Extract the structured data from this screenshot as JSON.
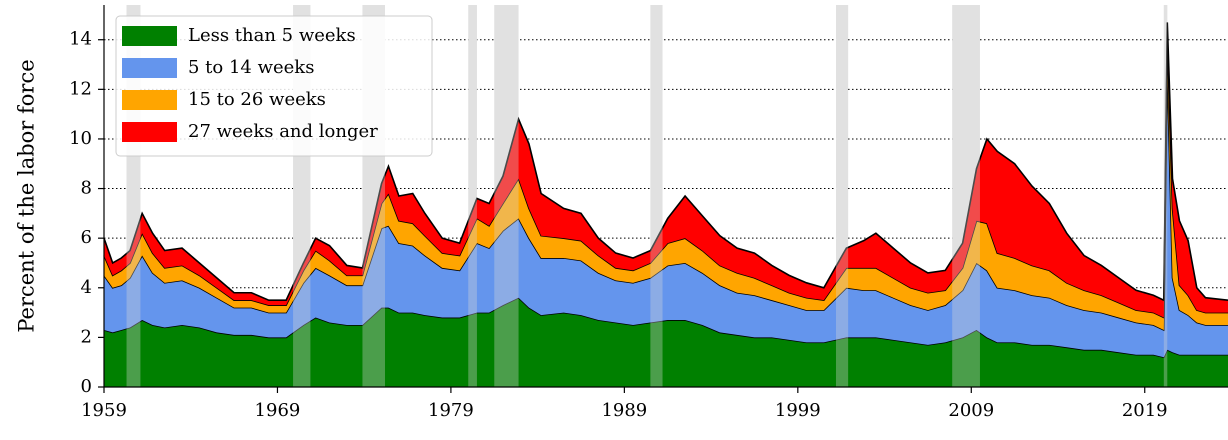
{
  "chart_data": {
    "type": "area",
    "stacked": true,
    "ylabel": "Percent of the labor force",
    "x": [
      1959,
      1959.5,
      1960,
      1960.5,
      1961.2,
      1961.8,
      1962.5,
      1963.5,
      1964.5,
      1965.5,
      1966.5,
      1967.5,
      1968.5,
      1969.5,
      1970.5,
      1971.2,
      1972,
      1973,
      1973.9,
      1975.0,
      1975.4,
      1976,
      1976.8,
      1977.5,
      1978.5,
      1979.5,
      1980.5,
      1981.2,
      1982.0,
      1982.9,
      1983.5,
      1984.2,
      1985.5,
      1986.5,
      1987.5,
      1988.5,
      1989.5,
      1990.5,
      1991.5,
      1992.5,
      1993.5,
      1994.5,
      1995.5,
      1996.5,
      1997.5,
      1998.5,
      1999.5,
      2000.5,
      2001.8,
      2002.8,
      2003.5,
      2004.5,
      2005.5,
      2006.5,
      2007.5,
      2008.5,
      2009.3,
      2009.9,
      2010.5,
      2011.5,
      2012.5,
      2013.5,
      2014.5,
      2015.5,
      2016.5,
      2017.5,
      2018.5,
      2019.5,
      2020.1,
      2020.3,
      2020.6,
      2021.0,
      2021.5,
      2022.0,
      2022.5,
      2023.8
    ],
    "series": [
      {
        "name": "Less than 5 weeks",
        "color": "#008000",
        "values": [
          2.3,
          2.2,
          2.3,
          2.4,
          2.7,
          2.5,
          2.4,
          2.5,
          2.4,
          2.2,
          2.1,
          2.1,
          2.0,
          2.0,
          2.5,
          2.8,
          2.6,
          2.5,
          2.5,
          3.2,
          3.2,
          3.0,
          3.0,
          2.9,
          2.8,
          2.8,
          3.0,
          3.0,
          3.3,
          3.6,
          3.2,
          2.9,
          3.0,
          2.9,
          2.7,
          2.6,
          2.5,
          2.6,
          2.7,
          2.7,
          2.5,
          2.2,
          2.1,
          2.0,
          2.0,
          1.9,
          1.8,
          1.8,
          2.0,
          2.0,
          2.0,
          1.9,
          1.8,
          1.7,
          1.8,
          2.0,
          2.3,
          2.0,
          1.8,
          1.8,
          1.7,
          1.7,
          1.6,
          1.5,
          1.5,
          1.4,
          1.3,
          1.3,
          1.2,
          1.5,
          1.4,
          1.3,
          1.3,
          1.3,
          1.3,
          1.3
        ]
      },
      {
        "name": "5 to 14 weeks",
        "color": "#6495ed",
        "values": [
          2.2,
          1.8,
          1.8,
          2.0,
          2.6,
          2.1,
          1.8,
          1.8,
          1.6,
          1.4,
          1.1,
          1.1,
          1.0,
          1.0,
          1.7,
          2.0,
          1.9,
          1.6,
          1.6,
          3.2,
          3.3,
          2.8,
          2.7,
          2.4,
          2.0,
          1.9,
          2.8,
          2.6,
          3.0,
          3.2,
          2.8,
          2.3,
          2.2,
          2.2,
          1.9,
          1.7,
          1.7,
          1.8,
          2.2,
          2.3,
          2.1,
          1.9,
          1.7,
          1.7,
          1.5,
          1.4,
          1.3,
          1.3,
          2.0,
          1.9,
          1.9,
          1.7,
          1.5,
          1.4,
          1.5,
          1.9,
          2.7,
          2.7,
          2.2,
          2.1,
          2.0,
          1.9,
          1.7,
          1.6,
          1.5,
          1.4,
          1.3,
          1.2,
          1.1,
          11.5,
          3.0,
          1.8,
          1.6,
          1.3,
          1.2,
          1.2
        ]
      },
      {
        "name": "15 to 26 weeks",
        "color": "#ffa500",
        "values": [
          0.8,
          0.5,
          0.6,
          0.6,
          0.9,
          0.8,
          0.6,
          0.6,
          0.5,
          0.4,
          0.3,
          0.3,
          0.3,
          0.3,
          0.5,
          0.7,
          0.6,
          0.4,
          0.4,
          1.0,
          1.3,
          0.9,
          0.9,
          0.8,
          0.6,
          0.6,
          1.0,
          0.9,
          1.1,
          1.6,
          1.2,
          0.9,
          0.8,
          0.8,
          0.7,
          0.5,
          0.5,
          0.6,
          0.9,
          1.0,
          0.9,
          0.8,
          0.8,
          0.7,
          0.6,
          0.5,
          0.5,
          0.4,
          0.8,
          0.9,
          0.9,
          0.8,
          0.7,
          0.7,
          0.6,
          0.9,
          1.7,
          1.9,
          1.4,
          1.3,
          1.2,
          1.1,
          0.9,
          0.8,
          0.7,
          0.6,
          0.5,
          0.5,
          0.5,
          1.1,
          2.8,
          1.0,
          0.8,
          0.5,
          0.5,
          0.5
        ]
      },
      {
        "name": "27 weeks and longer",
        "color": "#ff0000",
        "values": [
          0.7,
          0.5,
          0.5,
          0.5,
          0.8,
          0.8,
          0.7,
          0.7,
          0.5,
          0.4,
          0.3,
          0.3,
          0.2,
          0.2,
          0.3,
          0.5,
          0.6,
          0.4,
          0.3,
          0.8,
          1.1,
          1.0,
          1.2,
          0.9,
          0.6,
          0.5,
          0.8,
          0.9,
          1.1,
          2.4,
          2.6,
          1.7,
          1.2,
          1.1,
          0.7,
          0.6,
          0.5,
          0.5,
          1.0,
          1.7,
          1.4,
          1.2,
          1.0,
          1.0,
          0.8,
          0.7,
          0.6,
          0.5,
          0.8,
          1.1,
          1.4,
          1.2,
          1.0,
          0.8,
          0.8,
          1.0,
          2.1,
          3.4,
          4.1,
          3.8,
          3.2,
          2.7,
          2.0,
          1.4,
          1.2,
          1.0,
          0.8,
          0.7,
          0.7,
          0.6,
          1.2,
          2.6,
          2.2,
          0.9,
          0.6,
          0.5
        ]
      }
    ],
    "recessions": [
      [
        1960.3,
        1961.1
      ],
      [
        1969.9,
        1970.9
      ],
      [
        1973.9,
        1975.2
      ],
      [
        1980.0,
        1980.5
      ],
      [
        1981.5,
        1982.9
      ],
      [
        1990.5,
        1991.2
      ],
      [
        2001.2,
        2001.9
      ],
      [
        2007.9,
        2009.5
      ],
      [
        2020.1,
        2020.3
      ]
    ],
    "xlim": [
      1959,
      2023.8
    ],
    "ylim": [
      0,
      15.4
    ],
    "xticks": [
      1959,
      1969,
      1979,
      1989,
      1999,
      2009,
      2019
    ],
    "yticks": [
      0,
      2,
      4,
      6,
      8,
      10,
      12,
      14
    ],
    "grid": true,
    "legend": "upper left"
  }
}
